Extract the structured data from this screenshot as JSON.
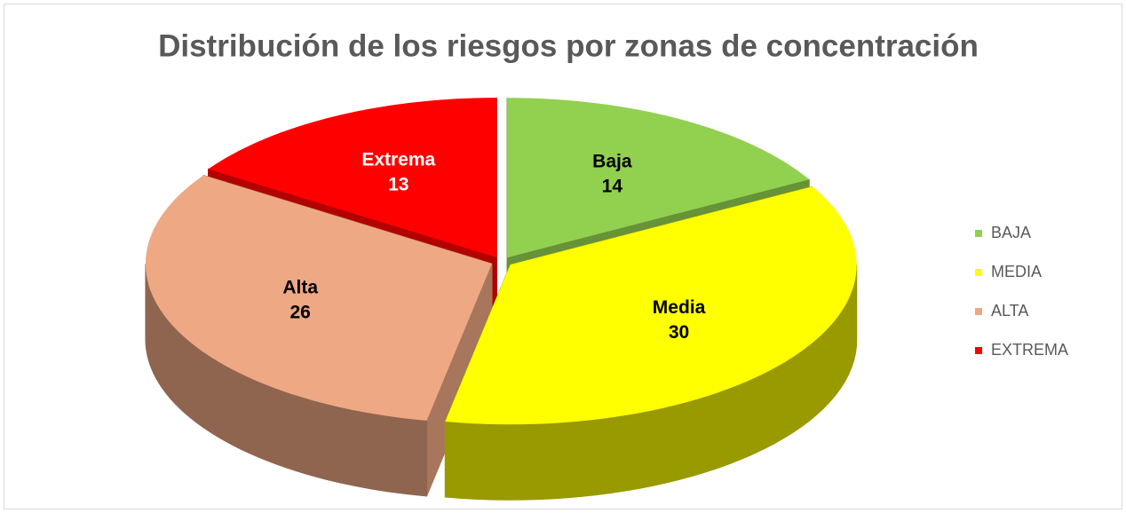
{
  "chart_data": {
    "type": "pie3d",
    "title": "Distribución de los riesgos por zonas de concentración",
    "categories": [
      "BAJA",
      "MEDIA",
      "ALTA",
      "EXTREMA"
    ],
    "slice_labels": [
      "Baja",
      "Media",
      "Alta",
      "Extrema"
    ],
    "values": [
      14,
      30,
      26,
      13
    ],
    "colors": [
      "#92d050",
      "#ffff00",
      "#eea883",
      "#ff0000"
    ],
    "label_colors": [
      "#000000",
      "#000000",
      "#000000",
      "#ffffff"
    ],
    "legend": "right"
  }
}
